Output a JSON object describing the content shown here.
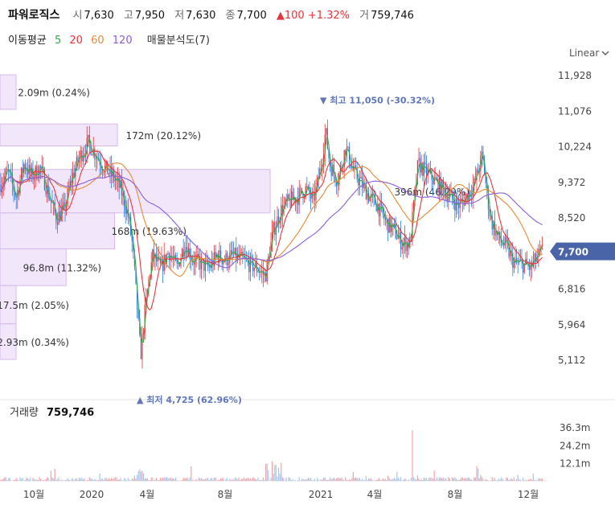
{
  "header": {
    "stock_name": "파워로직스",
    "open_label": "시",
    "open": "7,630",
    "high_label": "고",
    "high": "7,950",
    "low_label": "저",
    "low": "7,630",
    "close_label": "종",
    "close": "7,700",
    "change_arrow": "▲",
    "change": "100",
    "change_pct": "+1.32%",
    "volume_label": "거",
    "volume": "759,746",
    "ma_label": "이동평균",
    "ma5": "5",
    "ma20": "20",
    "ma60": "60",
    "ma120": "120",
    "volume_profile_label": "매물분석도(7)"
  },
  "scale_button": "Linear",
  "colors": {
    "up": "#e5363b",
    "down": "#2f7fd8",
    "ma5": "#3aa64a",
    "ma20": "#e5363b",
    "ma60": "#e78a34",
    "ma120": "#8b5fd8",
    "profile": "#ead7f7",
    "current": "#4a64a8"
  },
  "chart_data": {
    "type": "candlestick",
    "price_axis": {
      "ticks": [
        11928,
        11076,
        10224,
        9372,
        8520,
        7700,
        6816,
        5964,
        5112
      ],
      "labels": [
        "11,928",
        "11,076",
        "10,224",
        "9,372",
        "8,520",
        "7,700",
        "6,816",
        "5,964",
        "5,112"
      ],
      "ylim": [
        4600,
        12500
      ]
    },
    "current_price": {
      "value": 7700,
      "label": "7,700"
    },
    "x_axis": {
      "labels": [
        "10월",
        "2020",
        "4월",
        "8월",
        "2021",
        "4월",
        "8월",
        "12월"
      ]
    },
    "high_marker": {
      "value": 11050,
      "text": "▼ 최고 11,050 (-30.32%)"
    },
    "low_marker": {
      "value": 4725,
      "text": "▲ 최저 4,725 (62.96%)"
    },
    "volume_profile": [
      {
        "price_low": 10224,
        "price_high": 10750,
        "label": "172m (20.12%)",
        "fraction": 0.2012
      },
      {
        "price_low": 8620,
        "price_high": 9660,
        "label": "396m (46.29%)",
        "fraction": 0.4629
      },
      {
        "price_low": 7760,
        "price_high": 8620,
        "label": "168m (19.63%)",
        "fraction": 0.1963
      },
      {
        "price_low": 6880,
        "price_high": 7760,
        "label": "96.8m (11.32%)",
        "fraction": 0.1132
      },
      {
        "price_low": 5964,
        "price_high": 6880,
        "label": "17.5m (2.05%)",
        "fraction": 0.0205
      },
      {
        "price_low": 5112,
        "price_high": 5964,
        "label": "2.93m (0.34%)",
        "fraction": 0.0034
      },
      {
        "price_low": 11100,
        "price_high": 11928,
        "label": "2.09m (0.24%)",
        "fraction": 0.0024
      }
    ],
    "volume_panel": {
      "label": "거래량",
      "value": "759,746",
      "ticks": [
        36.3,
        24.2,
        12.1
      ],
      "tick_labels": [
        "36.3m",
        "24.2m",
        "12.1m"
      ],
      "ylim": [
        0,
        40
      ]
    },
    "price_path": [
      [
        0,
        9300
      ],
      [
        10,
        9600
      ],
      [
        20,
        9000
      ],
      [
        30,
        9800
      ],
      [
        40,
        9500
      ],
      [
        50,
        9700
      ],
      [
        60,
        9100
      ],
      [
        70,
        8500
      ],
      [
        80,
        8700
      ],
      [
        90,
        9500
      ],
      [
        100,
        10000
      ],
      [
        110,
        10300
      ],
      [
        120,
        10000
      ],
      [
        130,
        9700
      ],
      [
        140,
        9500
      ],
      [
        150,
        9200
      ],
      [
        160,
        8500
      ],
      [
        165,
        7800
      ],
      [
        170,
        6500
      ],
      [
        175,
        5200
      ],
      [
        180,
        6200
      ],
      [
        185,
        7000
      ],
      [
        190,
        7600
      ],
      [
        200,
        7300
      ],
      [
        210,
        7700
      ],
      [
        220,
        7300
      ],
      [
        230,
        7900
      ],
      [
        240,
        7500
      ],
      [
        250,
        7400
      ],
      [
        260,
        7300
      ],
      [
        270,
        7600
      ],
      [
        280,
        7500
      ],
      [
        290,
        7600
      ],
      [
        300,
        7500
      ],
      [
        310,
        7400
      ],
      [
        320,
        7300
      ],
      [
        330,
        7100
      ],
      [
        340,
        8200
      ],
      [
        350,
        8700
      ],
      [
        360,
        8900
      ],
      [
        370,
        9000
      ],
      [
        380,
        9200
      ],
      [
        390,
        8900
      ],
      [
        400,
        9800
      ],
      [
        405,
        10600
      ],
      [
        410,
        9800
      ],
      [
        420,
        9400
      ],
      [
        430,
        10200
      ],
      [
        440,
        9600
      ],
      [
        450,
        9300
      ],
      [
        460,
        9000
      ],
      [
        470,
        8800
      ],
      [
        480,
        8400
      ],
      [
        490,
        8200
      ],
      [
        500,
        7900
      ],
      [
        510,
        7900
      ],
      [
        520,
        9800
      ],
      [
        530,
        9600
      ],
      [
        540,
        9400
      ],
      [
        550,
        9200
      ],
      [
        560,
        9000
      ],
      [
        570,
        8800
      ],
      [
        580,
        9000
      ],
      [
        590,
        9300
      ],
      [
        600,
        10000
      ],
      [
        605,
        9200
      ],
      [
        610,
        8500
      ],
      [
        620,
        8000
      ],
      [
        630,
        7800
      ],
      [
        640,
        7400
      ],
      [
        650,
        7400
      ],
      [
        660,
        7300
      ],
      [
        670,
        7600
      ],
      [
        675,
        7700
      ]
    ]
  }
}
